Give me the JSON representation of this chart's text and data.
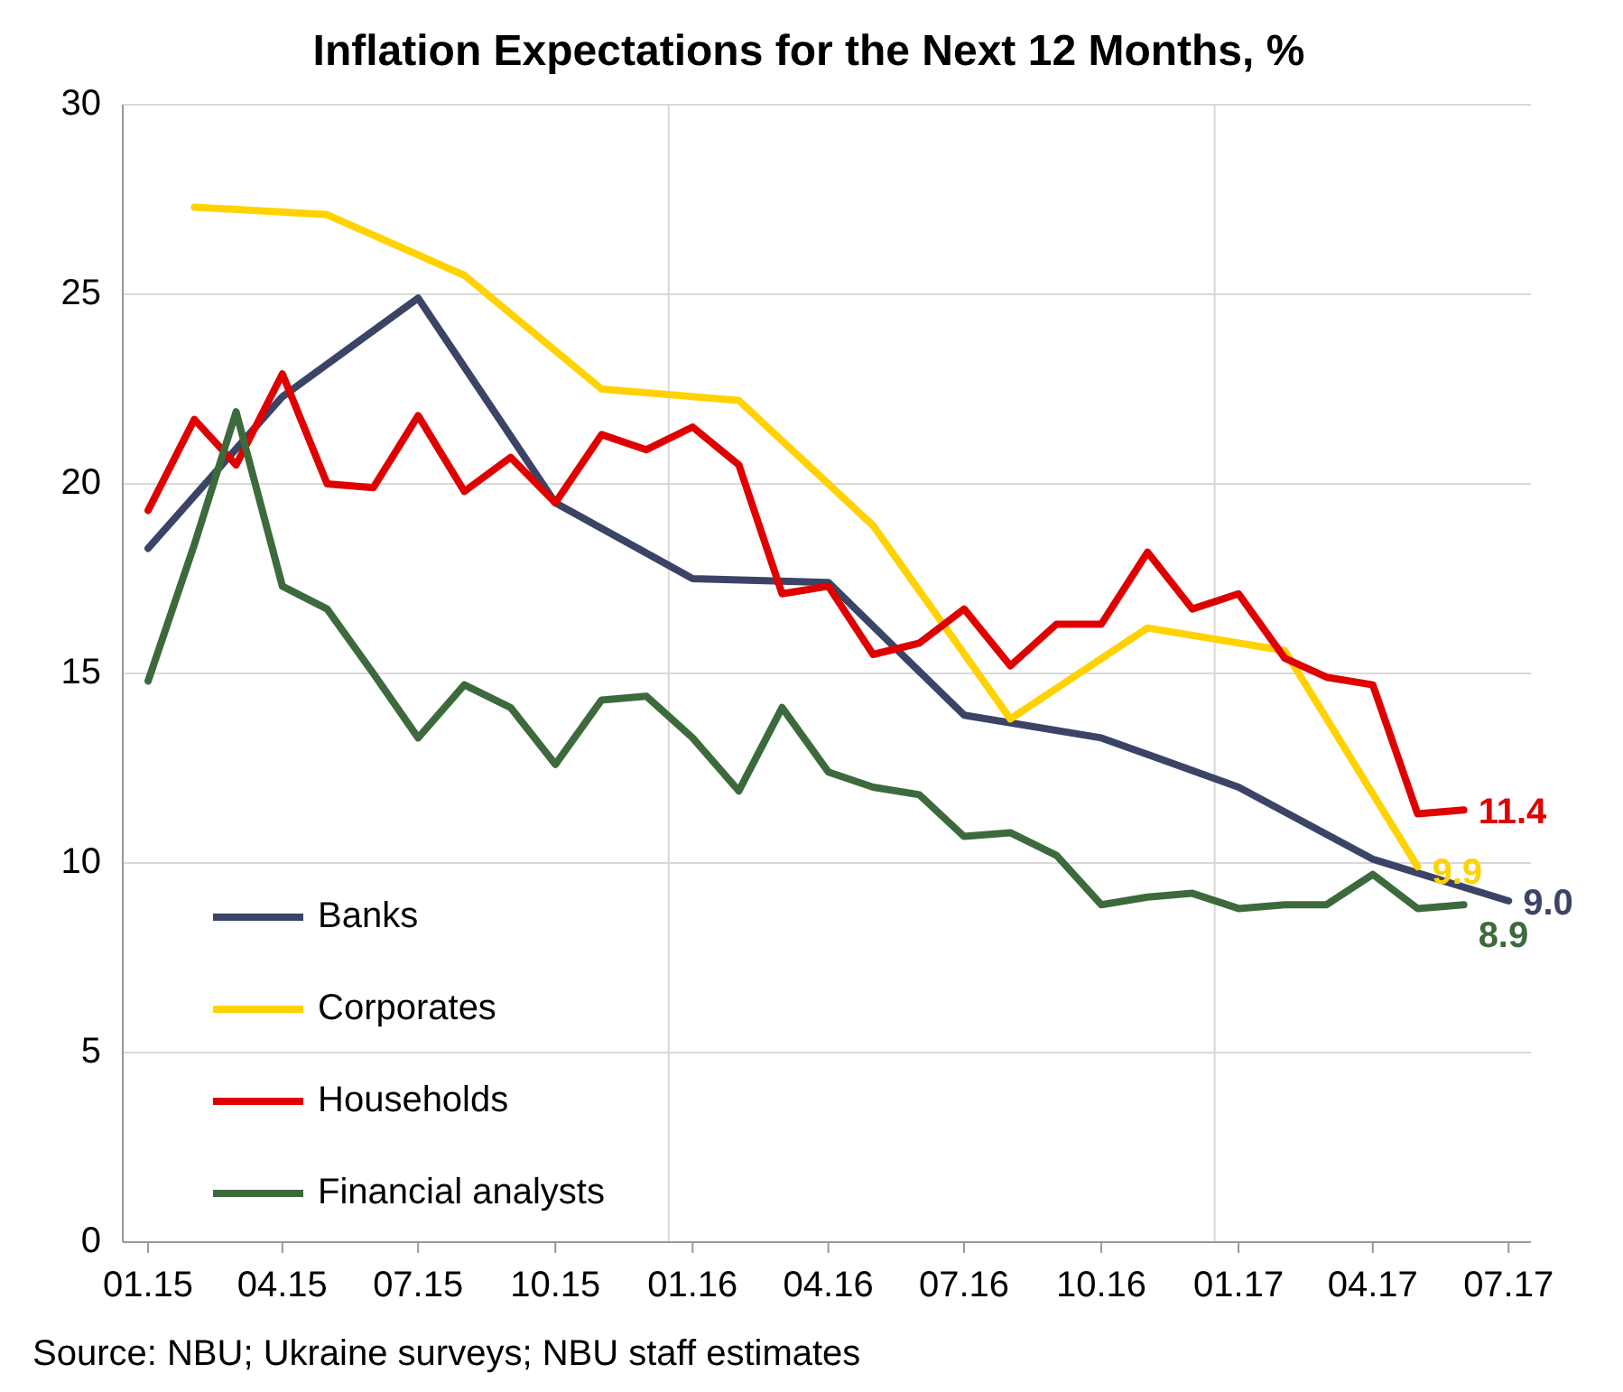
{
  "chart_data": {
    "type": "line",
    "title": "Inflation Expectations for the Next 12 Months, %",
    "xlim": [
      "2014-12-15",
      "2017-07-16"
    ],
    "xticks": [
      {
        "value": "2015-01",
        "label": "01.15"
      },
      {
        "value": "2015-04",
        "label": "04.15"
      },
      {
        "value": "2015-07",
        "label": "07.15"
      },
      {
        "value": "2015-10",
        "label": "10.15"
      },
      {
        "value": "2016-01",
        "label": "01.16"
      },
      {
        "value": "2016-04",
        "label": "04.16"
      },
      {
        "value": "2016-07",
        "label": "07.16"
      },
      {
        "value": "2016-10",
        "label": "10.16"
      },
      {
        "value": "2017-01",
        "label": "01.17"
      },
      {
        "value": "2017-04",
        "label": "04.17"
      },
      {
        "value": "2017-07",
        "label": "07.17"
      }
    ],
    "ylim": [
      0,
      30
    ],
    "yticks": [
      0,
      5,
      10,
      15,
      20,
      25,
      30
    ],
    "grid": "y",
    "legend": "bottom left",
    "marker": "none",
    "line_style": "solid",
    "ref_lines": [
      {
        "axis": "x",
        "value": "2015-12-16",
        "color": "#d9d9d9"
      },
      {
        "axis": "x",
        "value": "2016-12-16",
        "color": "#d9d9d9"
      }
    ],
    "series": [
      {
        "name": "Banks",
        "color": "#3b4466",
        "x": [
          "2015-01",
          "2015-04",
          "2015-07",
          "2015-10",
          "2016-01",
          "2016-04",
          "2016-07",
          "2016-10",
          "2017-01",
          "2017-04",
          "2017-07"
        ],
        "values": [
          18.3,
          22.3,
          24.9,
          19.5,
          17.5,
          17.4,
          13.9,
          13.3,
          12.0,
          10.1,
          9.0
        ],
        "value_labels": [
          null,
          null,
          null,
          null,
          null,
          null,
          null,
          null,
          null,
          null,
          "9.0"
        ]
      },
      {
        "name": "Corporates",
        "color": "#ffd200",
        "x": [
          "2015-02",
          "2015-05",
          "2015-08",
          "2015-11",
          "2016-02",
          "2016-05",
          "2016-08",
          "2016-11",
          "2017-02",
          "2017-05"
        ],
        "values": [
          27.3,
          27.1,
          25.5,
          22.5,
          22.2,
          18.9,
          13.8,
          16.2,
          15.6,
          9.9
        ],
        "value_labels": [
          null,
          null,
          null,
          null,
          null,
          null,
          null,
          null,
          null,
          "9.9"
        ]
      },
      {
        "name": "Households",
        "color": "#e00000",
        "x": [
          "2015-01",
          "2015-02",
          "2015-03",
          "2015-04",
          "2015-05",
          "2015-06",
          "2015-07",
          "2015-08",
          "2015-09",
          "2015-10",
          "2015-11",
          "2015-12",
          "2016-01",
          "2016-02",
          "2016-03",
          "2016-04",
          "2016-05",
          "2016-06",
          "2016-07",
          "2016-08",
          "2016-09",
          "2016-10",
          "2016-11",
          "2016-12",
          "2017-01",
          "2017-02",
          "2017-03",
          "2017-04",
          "2017-05",
          "2017-06"
        ],
        "values": [
          19.3,
          21.7,
          20.5,
          22.9,
          20.0,
          19.9,
          21.8,
          19.8,
          20.7,
          19.5,
          21.3,
          20.9,
          21.5,
          20.5,
          17.1,
          17.3,
          15.5,
          15.8,
          16.7,
          15.2,
          16.3,
          16.3,
          18.2,
          16.7,
          17.1,
          15.4,
          14.9,
          14.7,
          11.3,
          11.4
        ],
        "value_labels": [
          null,
          null,
          null,
          null,
          null,
          null,
          null,
          null,
          null,
          null,
          null,
          null,
          null,
          null,
          null,
          null,
          null,
          null,
          null,
          null,
          null,
          null,
          null,
          null,
          null,
          null,
          null,
          null,
          null,
          "11.4"
        ]
      },
      {
        "name": "Financial analysts",
        "color": "#3c6a3c",
        "x": [
          "2015-01",
          "2015-02",
          "2015-03",
          "2015-04",
          "2015-05",
          "2015-06",
          "2015-07",
          "2015-08",
          "2015-09",
          "2015-10",
          "2015-11",
          "2015-12",
          "2016-01",
          "2016-02",
          "2016-03",
          "2016-04",
          "2016-05",
          "2016-06",
          "2016-07",
          "2016-08",
          "2016-09",
          "2016-10",
          "2016-11",
          "2016-12",
          "2017-01",
          "2017-02",
          "2017-03",
          "2017-04",
          "2017-05",
          "2017-06"
        ],
        "values": [
          14.8,
          18.4,
          21.9,
          17.3,
          16.7,
          15.0,
          13.3,
          14.7,
          14.1,
          12.6,
          14.3,
          14.4,
          13.3,
          11.9,
          14.1,
          12.4,
          12.0,
          11.8,
          10.7,
          10.8,
          10.2,
          8.9,
          9.1,
          9.2,
          8.8,
          8.9,
          8.9,
          9.7,
          8.8,
          8.9
        ],
        "value_labels": [
          null,
          null,
          null,
          null,
          null,
          null,
          null,
          null,
          null,
          null,
          null,
          null,
          null,
          null,
          null,
          null,
          null,
          null,
          null,
          null,
          null,
          null,
          null,
          null,
          null,
          null,
          null,
          null,
          null,
          "8.9"
        ]
      }
    ],
    "annotations": [
      "Source: NBU; Ukraine surveys; NBU staff estimates"
    ]
  }
}
